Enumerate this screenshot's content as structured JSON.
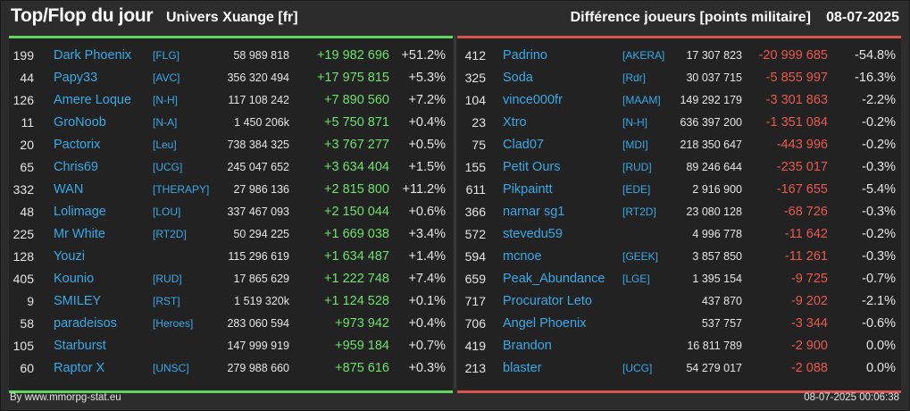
{
  "header": {
    "title": "Top/Flop du jour",
    "subtitle": "Univers Xuange [fr]",
    "diff_label": "Différence joueurs [points militaire]",
    "date": "08-07-2025"
  },
  "colors": {
    "top_accent": "#62d862",
    "flop_accent": "#d9534f",
    "name_color": "#38a9e6",
    "positive": "#6ee06e",
    "negative": "#e8584f"
  },
  "top": [
    {
      "rank": "199",
      "name": "Dark Phoenix",
      "tag": "[FLG]",
      "points": "58 989 818",
      "diff": "+19 982 696",
      "pct": "+51.2%"
    },
    {
      "rank": "44",
      "name": "Papy33",
      "tag": "[AVC]",
      "points": "356 320 494",
      "diff": "+17 975 815",
      "pct": "+5.3%"
    },
    {
      "rank": "126",
      "name": "Amere Loque",
      "tag": "[N-H]",
      "points": "117 108 242",
      "diff": "+7 890 560",
      "pct": "+7.2%"
    },
    {
      "rank": "11",
      "name": "GroNoob",
      "tag": "[N-A]",
      "points": "1 450 206k",
      "diff": "+5 750 871",
      "pct": "+0.4%"
    },
    {
      "rank": "20",
      "name": "Pactorix",
      "tag": "[Leu]",
      "points": "738 384 325",
      "diff": "+3 767 277",
      "pct": "+0.5%"
    },
    {
      "rank": "65",
      "name": "Chris69",
      "tag": "[UCG]",
      "points": "245 047 652",
      "diff": "+3 634 404",
      "pct": "+1.5%"
    },
    {
      "rank": "332",
      "name": "WAN",
      "tag": "[THERAPY]",
      "points": "27 986 136",
      "diff": "+2 815 800",
      "pct": "+11.2%"
    },
    {
      "rank": "48",
      "name": "Lolimage",
      "tag": "[LOU]",
      "points": "337 467 093",
      "diff": "+2 150 044",
      "pct": "+0.6%"
    },
    {
      "rank": "225",
      "name": "Mr White",
      "tag": "[RT2D]",
      "points": "50 294 225",
      "diff": "+1 669 038",
      "pct": "+3.4%"
    },
    {
      "rank": "128",
      "name": "Youzi",
      "tag": "",
      "points": "115 296 619",
      "diff": "+1 634 487",
      "pct": "+1.4%"
    },
    {
      "rank": "405",
      "name": "Kounio",
      "tag": "[RUD]",
      "points": "17 865 629",
      "diff": "+1 222 748",
      "pct": "+7.4%"
    },
    {
      "rank": "9",
      "name": "SMILEY",
      "tag": "[RST]",
      "points": "1 519 320k",
      "diff": "+1 124 528",
      "pct": "+0.1%"
    },
    {
      "rank": "58",
      "name": "paradeisos",
      "tag": "[Heroes]",
      "points": "283 060 594",
      "diff": "+973 942",
      "pct": "+0.4%"
    },
    {
      "rank": "105",
      "name": "Starburst",
      "tag": "",
      "points": "147 999 919",
      "diff": "+959 184",
      "pct": "+0.7%"
    },
    {
      "rank": "60",
      "name": "Raptor X",
      "tag": "[UNSC]",
      "points": "279 988 660",
      "diff": "+875 616",
      "pct": "+0.3%"
    }
  ],
  "flop": [
    {
      "rank": "412",
      "name": "Padrino",
      "tag": "[AKERA]",
      "points": "17 307 823",
      "diff": "-20 999 685",
      "pct": "-54.8%"
    },
    {
      "rank": "325",
      "name": "Soda",
      "tag": "[Rdr]",
      "points": "30 037 715",
      "diff": "-5 855 997",
      "pct": "-16.3%"
    },
    {
      "rank": "104",
      "name": "vince000fr",
      "tag": "[MAAM]",
      "points": "149 292 179",
      "diff": "-3 301 863",
      "pct": "-2.2%"
    },
    {
      "rank": "23",
      "name": "Xtro",
      "tag": "[N-H]",
      "points": "636 397 200",
      "diff": "-1 351 084",
      "pct": "-0.2%"
    },
    {
      "rank": "75",
      "name": "Clad07",
      "tag": "[MDI]",
      "points": "218 350 647",
      "diff": "-443 996",
      "pct": "-0.2%"
    },
    {
      "rank": "155",
      "name": "Petit Ours",
      "tag": "[RUD]",
      "points": "89 246 644",
      "diff": "-235 017",
      "pct": "-0.3%"
    },
    {
      "rank": "611",
      "name": "Pikpaintt",
      "tag": "[EDE]",
      "points": "2 916 900",
      "diff": "-167 655",
      "pct": "-5.4%"
    },
    {
      "rank": "366",
      "name": "narnar sg1",
      "tag": "[RT2D]",
      "points": "23 080 128",
      "diff": "-68 726",
      "pct": "-0.3%"
    },
    {
      "rank": "572",
      "name": "stevedu59",
      "tag": "",
      "points": "4 996 778",
      "diff": "-11 642",
      "pct": "-0.2%"
    },
    {
      "rank": "594",
      "name": "mcnoe",
      "tag": "[GEEK]",
      "points": "3 857 850",
      "diff": "-11 261",
      "pct": "-0.3%"
    },
    {
      "rank": "659",
      "name": "Peak_Abundance",
      "tag": "[LGE]",
      "points": "1 395 154",
      "diff": "-9 725",
      "pct": "-0.7%"
    },
    {
      "rank": "717",
      "name": "Procurator Leto",
      "tag": "",
      "points": "437 870",
      "diff": "-9 202",
      "pct": "-2.1%"
    },
    {
      "rank": "706",
      "name": "Angel Phoenix",
      "tag": "",
      "points": "537 757",
      "diff": "-3 344",
      "pct": "-0.6%"
    },
    {
      "rank": "419",
      "name": "Brandon",
      "tag": "",
      "points": "16 811 789",
      "diff": "-2 900",
      "pct": "0.0%"
    },
    {
      "rank": "213",
      "name": "blaster",
      "tag": "[UCG]",
      "points": "54 279 017",
      "diff": "-2 088",
      "pct": "0.0%"
    }
  ],
  "footer": {
    "source": "By www.mmorpg-stat.eu",
    "timestamp": "08-07-2025 00:06:38"
  }
}
